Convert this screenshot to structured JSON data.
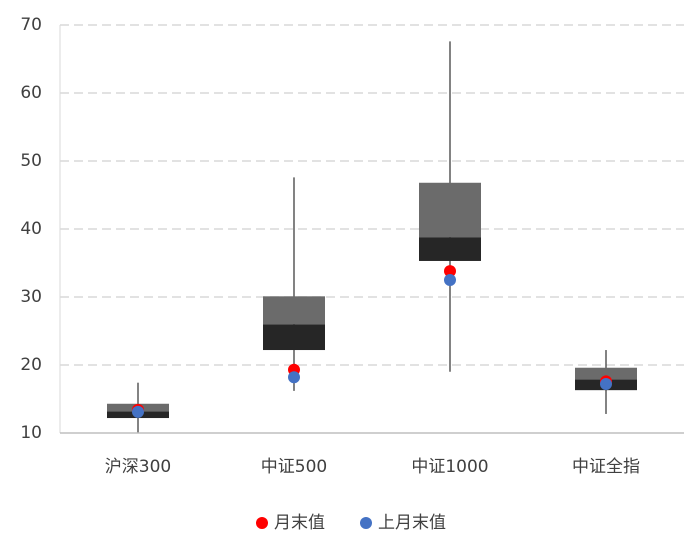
{
  "chart_data": {
    "type": "box",
    "categories": [
      "沪深300",
      "中证500",
      "中证1000",
      "中证全指"
    ],
    "boxes": [
      {
        "min": 10.1,
        "q1": 12.2,
        "median": 13.2,
        "q3": 14.3,
        "max": 17.4
      },
      {
        "min": 16.2,
        "q1": 22.2,
        "median": 26.0,
        "q3": 30.1,
        "max": 47.6
      },
      {
        "min": 19.0,
        "q1": 35.3,
        "median": 38.8,
        "q3": 46.8,
        "max": 67.6
      },
      {
        "min": 12.8,
        "q1": 16.3,
        "median": 17.9,
        "q3": 19.6,
        "max": 22.2
      }
    ],
    "lower_color": "#262626",
    "upper_color": "#6b6b6b",
    "whisker_color": "#404040",
    "series": [
      {
        "name": "月末值",
        "color": "#ff0000",
        "values": [
          13.4,
          19.3,
          33.8,
          17.6
        ]
      },
      {
        "name": "上月末值",
        "color": "#4472c4",
        "values": [
          13.1,
          18.2,
          32.5,
          17.2
        ]
      }
    ],
    "ylim": [
      10,
      70
    ],
    "yticks": [
      10,
      20,
      30,
      40,
      50,
      60,
      70
    ],
    "grid": true,
    "legend": "bottom"
  }
}
